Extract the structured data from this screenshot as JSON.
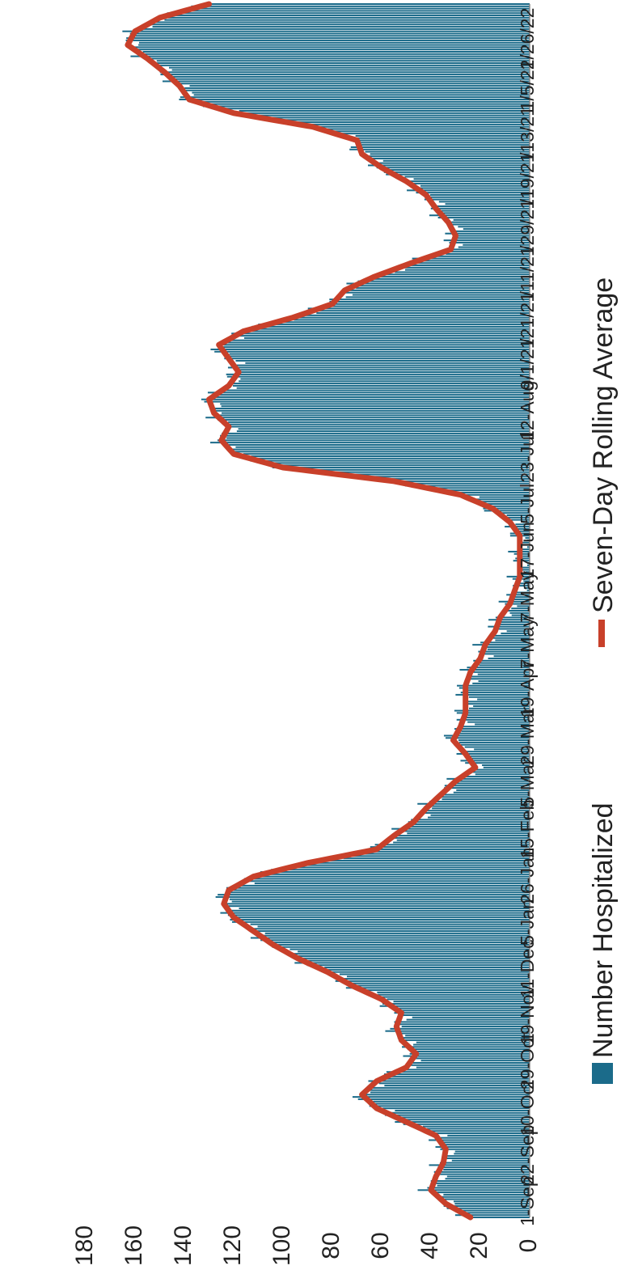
{
  "chart_data": {
    "type": "bar",
    "orientation": "rotated-90-clockwise",
    "ylim": [
      0,
      180
    ],
    "yticks": [
      0,
      20,
      40,
      60,
      80,
      100,
      120,
      140,
      160,
      180
    ],
    "x_tick_labels": [
      "1-Sep",
      "22-Sep",
      "10-Oct",
      "29-Oct",
      "19-Nov",
      "11-Dec",
      "5-Jan",
      "26-Jan",
      "15-Feb",
      "5-Mar",
      "29-Mar",
      "19-Apr",
      "7-May",
      "7-May",
      "17-Jun",
      "5-Jul",
      "23-Jul",
      "12-Aug",
      "9/1/21",
      "/21/21",
      "/11/21",
      "/29/21",
      "/19/21",
      "/13/21",
      "1/5/22",
      "1/26/22"
    ],
    "series": [
      {
        "name": "Number Hospitalized",
        "kind": "bar",
        "color": "#1b6b8a"
      },
      {
        "name": "Seven-Day Rolling Average",
        "kind": "line",
        "color": "#c8402a"
      }
    ],
    "key_points": [
      [
        0,
        24
      ],
      [
        6,
        34
      ],
      [
        12,
        40
      ],
      [
        18,
        38
      ],
      [
        24,
        35
      ],
      [
        30,
        34
      ],
      [
        36,
        38
      ],
      [
        42,
        50
      ],
      [
        48,
        62
      ],
      [
        54,
        68
      ],
      [
        60,
        62
      ],
      [
        66,
        50
      ],
      [
        72,
        46
      ],
      [
        78,
        52
      ],
      [
        84,
        54
      ],
      [
        90,
        52
      ],
      [
        96,
        60
      ],
      [
        102,
        72
      ],
      [
        108,
        82
      ],
      [
        114,
        94
      ],
      [
        120,
        104
      ],
      [
        126,
        112
      ],
      [
        132,
        120
      ],
      [
        138,
        124
      ],
      [
        144,
        122
      ],
      [
        150,
        112
      ],
      [
        156,
        90
      ],
      [
        162,
        62
      ],
      [
        168,
        55
      ],
      [
        174,
        47
      ],
      [
        180,
        42
      ],
      [
        186,
        36
      ],
      [
        192,
        30
      ],
      [
        198,
        22
      ],
      [
        204,
        26
      ],
      [
        210,
        31
      ],
      [
        216,
        28
      ],
      [
        222,
        26
      ],
      [
        228,
        26
      ],
      [
        234,
        26
      ],
      [
        240,
        24
      ],
      [
        246,
        20
      ],
      [
        252,
        18
      ],
      [
        258,
        14
      ],
      [
        264,
        12
      ],
      [
        270,
        8
      ],
      [
        276,
        6
      ],
      [
        282,
        4
      ],
      [
        288,
        4
      ],
      [
        294,
        4
      ],
      [
        300,
        4
      ],
      [
        306,
        8
      ],
      [
        312,
        15
      ],
      [
        318,
        28
      ],
      [
        324,
        55
      ],
      [
        330,
        100
      ],
      [
        336,
        120
      ],
      [
        342,
        125
      ],
      [
        348,
        122
      ],
      [
        354,
        128
      ],
      [
        360,
        130
      ],
      [
        366,
        122
      ],
      [
        372,
        118
      ],
      [
        378,
        122
      ],
      [
        384,
        126
      ],
      [
        390,
        116
      ],
      [
        396,
        96
      ],
      [
        402,
        80
      ],
      [
        408,
        75
      ],
      [
        414,
        63
      ],
      [
        420,
        48
      ],
      [
        426,
        32
      ],
      [
        432,
        30
      ],
      [
        438,
        33
      ],
      [
        444,
        38
      ],
      [
        450,
        42
      ],
      [
        456,
        50
      ],
      [
        462,
        60
      ],
      [
        468,
        68
      ],
      [
        474,
        70
      ],
      [
        480,
        88
      ],
      [
        486,
        120
      ],
      [
        492,
        138
      ],
      [
        498,
        142
      ],
      [
        504,
        148
      ],
      [
        510,
        155
      ],
      [
        516,
        163
      ],
      [
        522,
        160
      ],
      [
        528,
        150
      ],
      [
        534,
        130
      ]
    ]
  },
  "legend": {
    "bar_label": "Number Hospitalized",
    "line_label": "Seven-Day Rolling Average"
  }
}
